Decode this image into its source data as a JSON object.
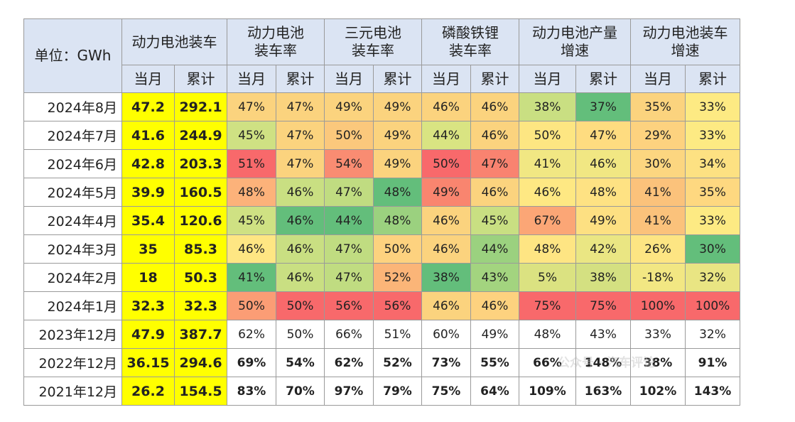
{
  "header": {
    "unit": "单位：GWh",
    "groups": [
      "动力电池装车",
      "动力电池\n装车率",
      "三元电池\n装车率",
      "磷酸铁锂\n装车率",
      "动力电池产量\n增速",
      "动力电池装车\n增速"
    ],
    "sub": [
      "当月",
      "累计"
    ]
  },
  "rows": [
    {
      "label": "2024年8月",
      "cells": [
        "47.2",
        "292.1",
        "47%",
        "47%",
        "49%",
        "49%",
        "46%",
        "46%",
        "38%",
        "37%",
        "35%",
        "33%"
      ],
      "colors": [
        "#fbd37e",
        "#fbd37e",
        "#fbd37e",
        "#fbd37e",
        "#fbd37e",
        "#fbd37e",
        "#c9df82",
        "#63be7b",
        "#fbd37e",
        "#fdea83"
      ]
    },
    {
      "label": "2024年7月",
      "cells": [
        "41.6",
        "244.9",
        "45%",
        "47%",
        "50%",
        "49%",
        "44%",
        "46%",
        "50%",
        "47%",
        "29%",
        "33%"
      ],
      "colors": [
        "#cfe183",
        "#fbd37e",
        "#fbc87c",
        "#fbd37e",
        "#d9e482",
        "#fbd37e",
        "#fde682",
        "#fedc80",
        "#fdd27f",
        "#fdea83"
      ]
    },
    {
      "label": "2024年6月",
      "cells": [
        "42.8",
        "203.3",
        "51%",
        "47%",
        "54%",
        "49%",
        "50%",
        "47%",
        "41%",
        "46%",
        "30%",
        "34%"
      ],
      "colors": [
        "#f8696b",
        "#fbd37e",
        "#f98c72",
        "#fbd37e",
        "#f8696b",
        "#f98370",
        "#f1e783",
        "#f1e783",
        "#fcd680",
        "#fde182"
      ]
    },
    {
      "label": "2024年5月",
      "cells": [
        "39.9",
        "160.5",
        "48%",
        "46%",
        "47%",
        "48%",
        "49%",
        "46%",
        "46%",
        "48%",
        "41%",
        "35%"
      ],
      "colors": [
        "#fcb27a",
        "#c9df82",
        "#c0dc81",
        "#63be7b",
        "#f9856f",
        "#fbd37e",
        "#fee883",
        "#fee283",
        "#fbc27b",
        "#fed880"
      ]
    },
    {
      "label": "2024年4月",
      "cells": [
        "35.4",
        "120.6",
        "45%",
        "46%",
        "44%",
        "48%",
        "46%",
        "45%",
        "67%",
        "49%",
        "41%",
        "33%"
      ],
      "colors": [
        "#cfe183",
        "#63be7b",
        "#63be7b",
        "#9bd17f",
        "#fbd37e",
        "#c9df82",
        "#fba676",
        "#fde082",
        "#fbc27b",
        "#fdea83"
      ]
    },
    {
      "label": "2024年3月",
      "cells": [
        "35",
        "85.3",
        "46%",
        "46%",
        "47%",
        "50%",
        "46%",
        "44%",
        "48%",
        "42%",
        "26%",
        "30%"
      ],
      "colors": [
        "#fee683",
        "#c9df82",
        "#c0dc81",
        "#fdd27f",
        "#fbd37e",
        "#9bd17f",
        "#fee583",
        "#eae683",
        "#fde583",
        "#63be7b"
      ]
    },
    {
      "label": "2024年2月",
      "cells": [
        "18",
        "50.3",
        "41%",
        "46%",
        "47%",
        "52%",
        "38%",
        "43%",
        "5%",
        "38%",
        "-18%",
        "32%"
      ],
      "colors": [
        "#63be7b",
        "#c9df82",
        "#c0dc81",
        "#fbb578",
        "#63be7b",
        "#a3d47f",
        "#dbe281",
        "#d4e081",
        "#f2e783",
        "#e9e583"
      ]
    },
    {
      "label": "2024年1月",
      "cells": [
        "32.3",
        "32.3",
        "50%",
        "50%",
        "56%",
        "56%",
        "46%",
        "46%",
        "75%",
        "75%",
        "100%",
        "100%"
      ],
      "colors": [
        "#fb9d75",
        "#f8696b",
        "#f8696b",
        "#f8696b",
        "#fbd37e",
        "#fdd27f",
        "#f8696b",
        "#f8696b",
        "#f8696b",
        "#f8696b"
      ]
    },
    {
      "label": "2023年12月",
      "cells": [
        "47.9",
        "387.7",
        "62%",
        "50%",
        "66%",
        "51%",
        "60%",
        "49%",
        "48%",
        "43%",
        "33%",
        "32%"
      ],
      "colors": [],
      "bold": false
    },
    {
      "label": "2022年12月",
      "cells": [
        "36.15",
        "294.6",
        "69%",
        "54%",
        "62%",
        "52%",
        "73%",
        "55%",
        "66%",
        "148%",
        "38%",
        "91%"
      ],
      "colors": [],
      "bold": true
    },
    {
      "label": "2021年12月",
      "cells": [
        "26.2",
        "154.5",
        "83%",
        "70%",
        "97%",
        "79%",
        "75%",
        "64%",
        "109%",
        "163%",
        "102%",
        "143%"
      ],
      "colors": [],
      "bold": true
    }
  ],
  "watermark": "公众号 · 汽车评论"
}
